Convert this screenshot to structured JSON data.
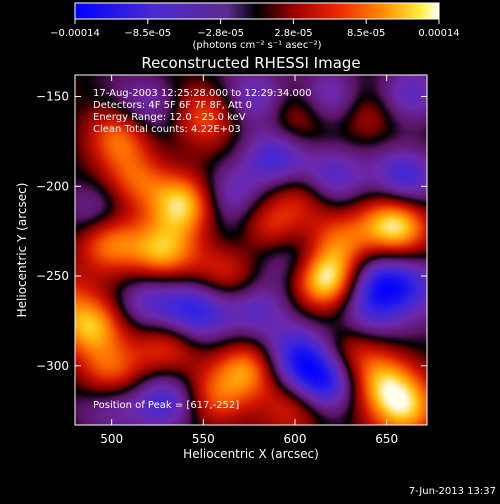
{
  "chart_data": {
    "type": "heatmap",
    "title": "Reconstructed RHESSI Image",
    "xlabel": "Heliocentric X (arcsec)",
    "ylabel": "Heliocentric Y (arcsec)",
    "xlim": [
      480,
      672
    ],
    "ylim": [
      -333,
      -138
    ],
    "x_ticks": [
      500,
      550,
      600,
      650
    ],
    "y_ticks": [
      -150,
      -200,
      -250,
      -300
    ],
    "colorbar": {
      "tick_labels": [
        "-0.00014",
        "-8.5e-05",
        "-2.8e-05",
        "2.8e-05",
        "8.5e-05",
        "0.00014"
      ],
      "units_label": "(photons cm⁻² s⁻¹ asec⁻²)",
      "range": [
        -0.00014,
        0.00014
      ]
    },
    "annotations": {
      "time_range": "17-Aug-2003 12:25:28.000 to 12:29:34.000",
      "detectors": "Detectors: 4F 5F 6F 7F 8F, Att 0",
      "energy": "Energy Range: 12.0 - 25.0 keV",
      "clean": "Clean    Total counts: 4.22E+03",
      "peak": "Position of Peak = [617,-252]"
    },
    "peak_position": [
      617,
      -252
    ],
    "blobs": [
      {
        "x": 617,
        "y": -252,
        "v": 1.0
      },
      {
        "x": 655,
        "y": -222,
        "v": 0.95
      },
      {
        "x": 540,
        "y": -210,
        "v": 0.85
      },
      {
        "x": 528,
        "y": -237,
        "v": 0.8
      },
      {
        "x": 490,
        "y": -278,
        "v": 0.8
      },
      {
        "x": 500,
        "y": -305,
        "v": 0.6
      },
      {
        "x": 498,
        "y": -230,
        "v": 0.65
      },
      {
        "x": 575,
        "y": -302,
        "v": 0.7
      },
      {
        "x": 555,
        "y": -318,
        "v": 0.45
      },
      {
        "x": 600,
        "y": -322,
        "v": 0.5
      },
      {
        "x": 648,
        "y": -310,
        "v": 0.75
      },
      {
        "x": 660,
        "y": -325,
        "v": 0.7
      },
      {
        "x": 565,
        "y": -245,
        "v": 0.55
      },
      {
        "x": 585,
        "y": -225,
        "v": 0.5
      },
      {
        "x": 605,
        "y": -205,
        "v": 0.45
      },
      {
        "x": 632,
        "y": -290,
        "v": 0.45
      },
      {
        "x": 550,
        "y": -160,
        "v": 0.5
      },
      {
        "x": 505,
        "y": -172,
        "v": 0.55
      },
      {
        "x": 512,
        "y": -197,
        "v": 0.5
      },
      {
        "x": 470,
        "y": -260,
        "v": 0.4
      },
      {
        "x": 640,
        "y": -160,
        "v": 0.4
      },
      {
        "x": 600,
        "y": -160,
        "v": 0.4
      },
      {
        "x": 530,
        "y": -290,
        "v": 0.45
      },
      {
        "x": 625,
        "y": -230,
        "v": 0.5
      },
      {
        "x": 580,
        "y": -270,
        "v": -0.5
      },
      {
        "x": 545,
        "y": -270,
        "v": -0.7
      },
      {
        "x": 520,
        "y": -265,
        "v": -0.5
      },
      {
        "x": 530,
        "y": -320,
        "v": -0.6
      },
      {
        "x": 600,
        "y": -295,
        "v": -0.75
      },
      {
        "x": 615,
        "y": -310,
        "v": -0.95
      },
      {
        "x": 570,
        "y": -235,
        "v": -0.4
      },
      {
        "x": 600,
        "y": -240,
        "v": -0.4
      },
      {
        "x": 590,
        "y": -185,
        "v": -0.6
      },
      {
        "x": 620,
        "y": -195,
        "v": -0.6
      },
      {
        "x": 645,
        "y": -255,
        "v": -0.7
      },
      {
        "x": 660,
        "y": -195,
        "v": -0.65
      },
      {
        "x": 665,
        "y": -255,
        "v": -0.5
      },
      {
        "x": 520,
        "y": -155,
        "v": -0.45
      },
      {
        "x": 580,
        "y": -150,
        "v": -0.55
      },
      {
        "x": 620,
        "y": -152,
        "v": -0.5
      },
      {
        "x": 660,
        "y": -150,
        "v": -0.5
      },
      {
        "x": 490,
        "y": -215,
        "v": -0.4
      },
      {
        "x": 565,
        "y": -205,
        "v": -0.45
      },
      {
        "x": 640,
        "y": -275,
        "v": -0.5
      },
      {
        "x": 500,
        "y": -320,
        "v": -0.45
      }
    ]
  },
  "footer": {
    "timestamp": "7-Jun-2013 13:37"
  }
}
